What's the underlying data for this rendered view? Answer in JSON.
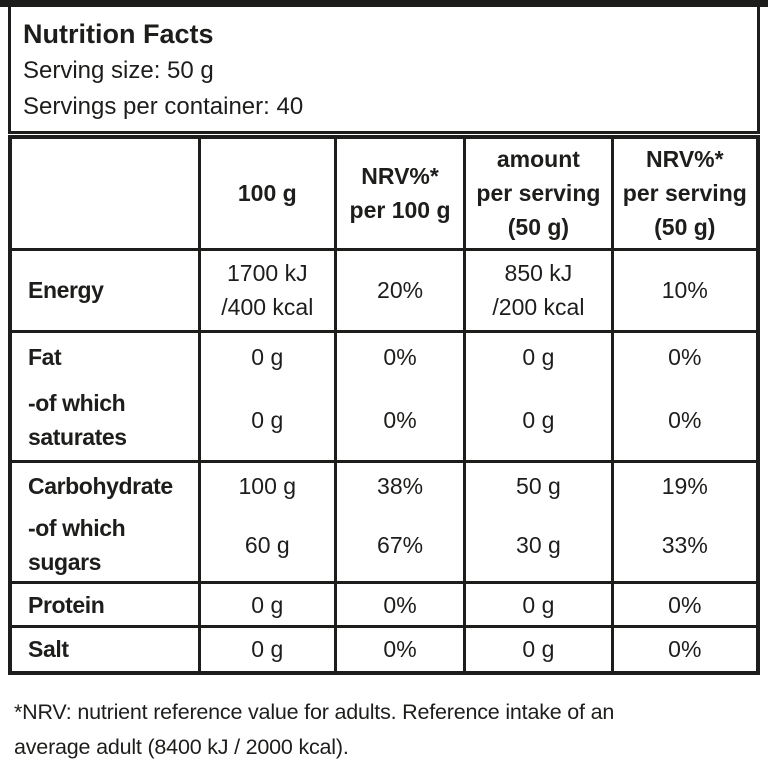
{
  "header": {
    "title": "Nutrition Facts",
    "serving_size": "Serving size: 50 g",
    "servings_per_container": "Servings per container: 40"
  },
  "table": {
    "columns": [
      "",
      "100 g",
      "NRV%*\nper 100 g",
      "amount\nper serving\n(50 g)",
      "NRV%*\nper serving\n(50 g)"
    ],
    "rows": [
      {
        "label": "Energy",
        "values": [
          "1700 kJ\n/400 kcal",
          "20%",
          "850 kJ\n/200 kcal",
          "10%"
        ]
      },
      {
        "label": "Fat",
        "values": [
          "0 g",
          "0%",
          "0 g",
          "0%"
        ]
      },
      {
        "label": "-of which\nsaturates",
        "values": [
          "0 g",
          "0%",
          "0 g",
          "0%"
        ]
      },
      {
        "label": "Carbohydrate",
        "values": [
          "100 g",
          "38%",
          "50 g",
          "19%"
        ]
      },
      {
        "label": "-of which sugars",
        "values": [
          "60 g",
          "67%",
          "30 g",
          "33%"
        ]
      },
      {
        "label": "Protein",
        "values": [
          "0 g",
          "0%",
          "0 g",
          "0%"
        ]
      },
      {
        "label": "Salt",
        "values": [
          "0 g",
          "0%",
          "0 g",
          "0%"
        ]
      }
    ]
  },
  "footnote": "*NRV: nutrient reference value for adults. Reference intake of an\naverage adult (8400 kJ / 2000 kcal).",
  "colors": {
    "ink": "#1d1d1b",
    "background": "#ffffff"
  }
}
